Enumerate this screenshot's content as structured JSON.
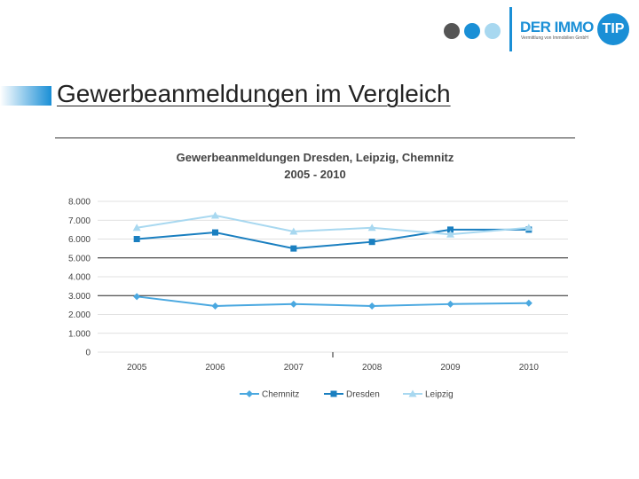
{
  "header": {
    "logo_text": "DER IMMO",
    "logo_badge": "TIP",
    "logo_sub": "Vermittlung von Immobilien GmbH",
    "dot_colors": [
      "#555555",
      "#1a8fd6",
      "#a8d8f0"
    ],
    "brand_color": "#1a8fd6"
  },
  "slide": {
    "title": "Gewerbeanmeldungen im Vergleich",
    "accent_color": "#1a8fd6"
  },
  "chart_data": {
    "type": "line",
    "title": "Gewerbeanmeldungen Dresden, Leipzig, Chemnitz",
    "subtitle": "2005 - 2010",
    "categories": [
      "2005",
      "2006",
      "2007",
      "2008",
      "2009",
      "2010"
    ],
    "ylim": [
      0,
      8000
    ],
    "yticks": [
      0,
      1000,
      2000,
      3000,
      4000,
      5000,
      6000,
      7000,
      8000
    ],
    "ytick_labels": [
      "0",
      "1.000",
      "2.000",
      "3.000",
      "4.000",
      "5.000",
      "6.000",
      "7.000",
      "8.000"
    ],
    "xlabel": "",
    "ylabel": "",
    "grid": true,
    "legend_position": "bottom",
    "series": [
      {
        "name": "Chemnitz",
        "values": [
          2950,
          2450,
          2550,
          2450,
          2550,
          2600
        ],
        "color": "#4aa8e0",
        "marker": "diamond"
      },
      {
        "name": "Dresden",
        "values": [
          6000,
          6350,
          5500,
          5850,
          6500,
          6500
        ],
        "color": "#1a7fc0",
        "marker": "square"
      },
      {
        "name": "Leipzig",
        "values": [
          6600,
          7250,
          6400,
          6600,
          6250,
          6600
        ],
        "color": "#a8d8f0",
        "marker": "triangle"
      }
    ]
  }
}
